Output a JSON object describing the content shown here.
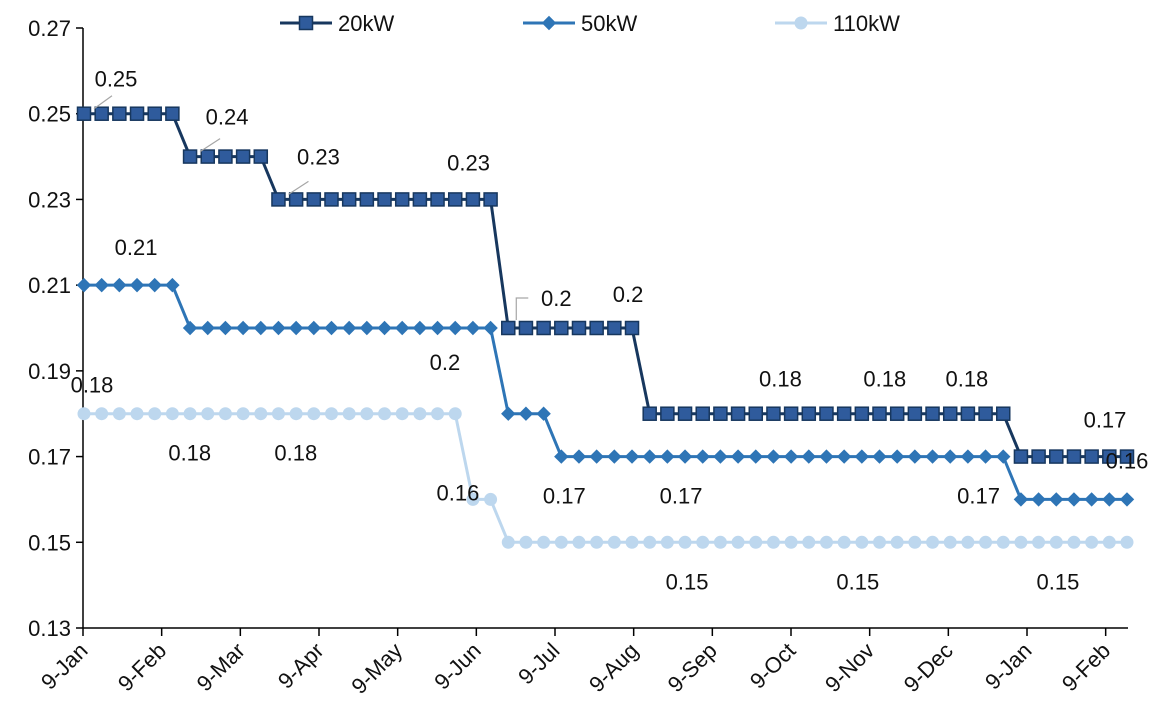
{
  "chart_data": {
    "type": "line",
    "title": "",
    "xlabel": "",
    "ylabel": "",
    "ylim": [
      0.13,
      0.27
    ],
    "yticks": [
      "0.13",
      "0.15",
      "0.17",
      "0.19",
      "0.21",
      "0.23",
      "0.25",
      "0.27"
    ],
    "xticks": [
      "9-Jan",
      "9-Feb",
      "9-Mar",
      "9-Apr",
      "9-May",
      "9-Jun",
      "9-Jul",
      "9-Aug",
      "9-Sep",
      "9-Oct",
      "9-Nov",
      "9-Dec",
      "9-Jan",
      "9-Feb"
    ],
    "grid": false,
    "legend_position": "top",
    "series": [
      {
        "name": "20kW",
        "color": "#17375e",
        "fill": "#2f5b9c",
        "marker": "square",
        "values": [
          0.25,
          0.25,
          0.25,
          0.25,
          0.25,
          0.25,
          0.24,
          0.24,
          0.24,
          0.24,
          0.24,
          0.23,
          0.23,
          0.23,
          0.23,
          0.23,
          0.23,
          0.23,
          0.23,
          0.23,
          0.23,
          0.23,
          0.23,
          0.23,
          0.2,
          0.2,
          0.2,
          0.2,
          0.2,
          0.2,
          0.2,
          0.2,
          0.18,
          0.18,
          0.18,
          0.18,
          0.18,
          0.18,
          0.18,
          0.18,
          0.18,
          0.18,
          0.18,
          0.18,
          0.18,
          0.18,
          0.18,
          0.18,
          0.18,
          0.18,
          0.18,
          0.18,
          0.18,
          0.17,
          0.17,
          0.17,
          0.17,
          0.17,
          0.17,
          0.17
        ]
      },
      {
        "name": "50kW",
        "color": "#2e75b6",
        "fill": "#2e75b6",
        "marker": "diamond",
        "values": [
          0.21,
          0.21,
          0.21,
          0.21,
          0.21,
          0.21,
          0.2,
          0.2,
          0.2,
          0.2,
          0.2,
          0.2,
          0.2,
          0.2,
          0.2,
          0.2,
          0.2,
          0.2,
          0.2,
          0.2,
          0.2,
          0.2,
          0.2,
          0.2,
          0.18,
          0.18,
          0.18,
          0.17,
          0.17,
          0.17,
          0.17,
          0.17,
          0.17,
          0.17,
          0.17,
          0.17,
          0.17,
          0.17,
          0.17,
          0.17,
          0.17,
          0.17,
          0.17,
          0.17,
          0.17,
          0.17,
          0.17,
          0.17,
          0.17,
          0.17,
          0.17,
          0.17,
          0.17,
          0.16,
          0.16,
          0.16,
          0.16,
          0.16,
          0.16,
          0.16
        ]
      },
      {
        "name": "110kW",
        "color": "#bdd7ee",
        "fill": "#bdd7ee",
        "marker": "circle",
        "values": [
          0.18,
          0.18,
          0.18,
          0.18,
          0.18,
          0.18,
          0.18,
          0.18,
          0.18,
          0.18,
          0.18,
          0.18,
          0.18,
          0.18,
          0.18,
          0.18,
          0.18,
          0.18,
          0.18,
          0.18,
          0.18,
          0.18,
          0.16,
          0.16,
          0.15,
          0.15,
          0.15,
          0.15,
          0.15,
          0.15,
          0.15,
          0.15,
          0.15,
          0.15,
          0.15,
          0.15,
          0.15,
          0.15,
          0.15,
          0.15,
          0.15,
          0.15,
          0.15,
          0.15,
          0.15,
          0.15,
          0.15,
          0.15,
          0.15,
          0.15,
          0.15,
          0.15,
          0.15,
          0.15,
          0.15,
          0.15,
          0.15,
          0.15,
          0.15,
          0.15
        ]
      }
    ],
    "annotations": [
      {
        "series": 0,
        "index": 0,
        "text": "0.25"
      },
      {
        "series": 0,
        "index": 6,
        "text": "0.24"
      },
      {
        "series": 0,
        "index": 11,
        "text": "0.23"
      },
      {
        "series": 0,
        "index": 23,
        "text": "0.23"
      },
      {
        "series": 0,
        "index": 24,
        "text": "0.2"
      },
      {
        "series": 0,
        "index": 31,
        "text": "0.2"
      },
      {
        "series": 0,
        "index": 36,
        "text": "0.18"
      },
      {
        "series": 0,
        "index": 44,
        "text": "0.18"
      },
      {
        "series": 0,
        "index": 50,
        "text": "0.18"
      },
      {
        "series": 0,
        "index": 59,
        "text": "0.17"
      },
      {
        "series": 1,
        "index": 3,
        "text": "0.21"
      },
      {
        "series": 1,
        "index": 22,
        "text": "0.2"
      },
      {
        "series": 1,
        "index": 27,
        "text": "0.17"
      },
      {
        "series": 1,
        "index": 34,
        "text": "0.17"
      },
      {
        "series": 1,
        "index": 51,
        "text": "0.17"
      },
      {
        "series": 1,
        "index": 59,
        "text": "0.16"
      },
      {
        "series": 2,
        "index": 0,
        "text": "0.18"
      },
      {
        "series": 2,
        "index": 7,
        "text": "0.18"
      },
      {
        "series": 2,
        "index": 13,
        "text": "0.18"
      },
      {
        "series": 2,
        "index": 22,
        "text": "0.16"
      },
      {
        "series": 2,
        "index": 34,
        "text": "0.15"
      },
      {
        "series": 2,
        "index": 44,
        "text": "0.15"
      },
      {
        "series": 2,
        "index": 56,
        "text": "0.15"
      }
    ]
  }
}
